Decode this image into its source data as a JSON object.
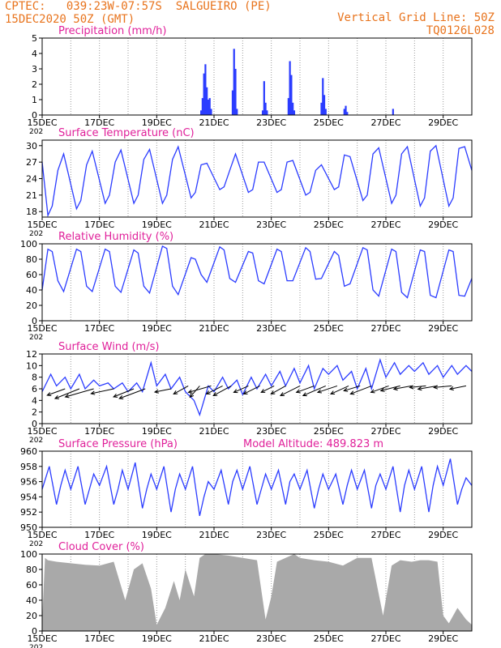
{
  "header": {
    "line1": "CPTEC:   039:23W-07:57S  SALGUEIRO (PE)",
    "line2": "15DEC2020 50Z (GMT)",
    "grid_note": "Vertical Grid Line: 50Z",
    "code": "TQ0126L028"
  },
  "x_ticks": [
    "15DEC",
    "17DEC",
    "19DEC",
    "21DEC",
    "23DEC",
    "25DEC",
    "27DEC",
    "29DEC"
  ],
  "x_tick_days": [
    15,
    17,
    19,
    21,
    23,
    25,
    27,
    29
  ],
  "year_fragment": "202",
  "colors": {
    "series": "#2b3cff",
    "title": "#e0209a",
    "header": "#e8731c",
    "cloud": "#a9a9a9",
    "vector": "#000000"
  },
  "chart_data": [
    {
      "type": "bar",
      "title": "Precipitation (mm/h)",
      "xlim": [
        15,
        30
      ],
      "ylim": [
        0,
        5
      ],
      "yticks": [
        "0",
        "1",
        "2",
        "3",
        "4",
        "5"
      ],
      "x": [
        20.55,
        20.6,
        20.65,
        20.7,
        20.75,
        20.8,
        20.85,
        20.9,
        21.65,
        21.7,
        21.75,
        21.8,
        22.7,
        22.75,
        22.8,
        22.85,
        23.6,
        23.65,
        23.7,
        23.75,
        23.8,
        24.75,
        24.8,
        24.85,
        24.9,
        25.55,
        25.6,
        25.65,
        27.25
      ],
      "values": [
        0.3,
        1.1,
        2.7,
        3.3,
        1.8,
        1.0,
        1.1,
        0.4,
        1.6,
        4.3,
        3.0,
        0.4,
        0.3,
        2.2,
        0.8,
        0.3,
        1.1,
        3.5,
        2.6,
        0.8,
        0.3,
        0.8,
        2.4,
        1.3,
        0.4,
        0.4,
        0.6,
        0.2,
        0.4
      ]
    },
    {
      "type": "line",
      "title": "Surface Temperature (nC)",
      "xlim": [
        15,
        30
      ],
      "ylim": [
        17,
        31
      ],
      "yticks": [
        "18",
        "21",
        "24",
        "27",
        "30"
      ],
      "series": [
        {
          "x": [
            15.0,
            15.2,
            15.35,
            15.55,
            15.75,
            16.2,
            16.35,
            16.55,
            16.75,
            17.2,
            17.35,
            17.55,
            17.75,
            18.2,
            18.35,
            18.55,
            18.75,
            19.2,
            19.35,
            19.55,
            19.75,
            20.2,
            20.35,
            20.55,
            20.75,
            21.2,
            21.35,
            21.55,
            21.75,
            22.2,
            22.35,
            22.55,
            22.75,
            23.2,
            23.35,
            23.55,
            23.75,
            24.2,
            24.35,
            24.55,
            24.75,
            25.2,
            25.35,
            25.55,
            25.75,
            26.2,
            26.35,
            26.55,
            26.75,
            27.2,
            27.35,
            27.55,
            27.75,
            28.2,
            28.35,
            28.55,
            28.75,
            29.2,
            29.35,
            29.55,
            29.75,
            30.0
          ],
          "y": [
            27.0,
            17.3,
            19.0,
            25.5,
            28.5,
            18.5,
            20.0,
            26.5,
            29.0,
            19.5,
            21.0,
            27.0,
            29.2,
            19.5,
            21.0,
            27.5,
            29.3,
            19.5,
            21.0,
            27.5,
            29.8,
            20.5,
            21.5,
            26.5,
            26.8,
            22.0,
            22.5,
            25.5,
            28.5,
            21.5,
            22.0,
            27.0,
            27.0,
            21.5,
            22.0,
            27.0,
            27.3,
            21.0,
            21.5,
            25.5,
            26.5,
            22.0,
            22.5,
            28.3,
            28.0,
            20.0,
            21.0,
            28.5,
            29.6,
            19.5,
            21.0,
            28.5,
            29.8,
            19.0,
            20.5,
            29.0,
            30.0,
            19.0,
            20.5,
            29.5,
            29.8,
            25.5
          ]
        }
      ]
    },
    {
      "type": "line",
      "title": "Relative Humidity (%)",
      "xlim": [
        15,
        30
      ],
      "ylim": [
        0,
        100
      ],
      "yticks": [
        "0",
        "20",
        "40",
        "60",
        "80",
        "100"
      ],
      "series": [
        {
          "x": [
            15.0,
            15.2,
            15.35,
            15.55,
            15.75,
            16.2,
            16.35,
            16.55,
            16.75,
            17.2,
            17.35,
            17.55,
            17.75,
            18.2,
            18.35,
            18.55,
            18.75,
            19.2,
            19.35,
            19.55,
            19.75,
            20.2,
            20.35,
            20.55,
            20.75,
            21.2,
            21.35,
            21.55,
            21.75,
            22.2,
            22.35,
            22.55,
            22.75,
            23.2,
            23.35,
            23.55,
            23.75,
            24.2,
            24.35,
            24.55,
            24.75,
            25.2,
            25.35,
            25.55,
            25.75,
            26.2,
            26.35,
            26.55,
            26.75,
            27.2,
            27.35,
            27.55,
            27.75,
            28.2,
            28.35,
            28.55,
            28.75,
            29.2,
            29.35,
            29.55,
            29.75,
            30.0
          ],
          "y": [
            40,
            93,
            90,
            52,
            38,
            93,
            90,
            45,
            38,
            93,
            90,
            45,
            37,
            92,
            88,
            45,
            36,
            97,
            94,
            45,
            34,
            82,
            80,
            60,
            50,
            96,
            92,
            55,
            50,
            90,
            88,
            52,
            48,
            93,
            90,
            52,
            52,
            95,
            90,
            54,
            55,
            90,
            85,
            45,
            48,
            95,
            92,
            40,
            32,
            93,
            90,
            37,
            30,
            92,
            90,
            33,
            30,
            92,
            90,
            33,
            32,
            55
          ]
        }
      ]
    },
    {
      "type": "line",
      "title": "Surface Wind (m/s)",
      "xlim": [
        15,
        30
      ],
      "ylim": [
        0,
        12
      ],
      "yticks": [
        "0",
        "2",
        "4",
        "6",
        "8",
        "10",
        "12"
      ],
      "series": [
        {
          "x": [
            15.0,
            15.3,
            15.5,
            15.8,
            16.0,
            16.3,
            16.5,
            16.8,
            17.0,
            17.3,
            17.5,
            17.8,
            18.0,
            18.3,
            18.5,
            18.8,
            19.0,
            19.3,
            19.5,
            19.8,
            20.0,
            20.3,
            20.5,
            20.8,
            21.0,
            21.3,
            21.5,
            21.8,
            22.0,
            22.3,
            22.5,
            22.8,
            23.0,
            23.3,
            23.5,
            23.8,
            24.0,
            24.3,
            24.5,
            24.8,
            25.0,
            25.3,
            25.5,
            25.8,
            26.0,
            26.3,
            26.5,
            26.8,
            27.0,
            27.3,
            27.5,
            27.8,
            28.0,
            28.3,
            28.5,
            28.8,
            29.0,
            29.3,
            29.5,
            29.8,
            30.0
          ],
          "y": [
            5.5,
            8.5,
            6.5,
            8.0,
            6.0,
            8.5,
            6.0,
            7.5,
            6.5,
            7.0,
            6.0,
            7.0,
            5.5,
            7.0,
            5.5,
            10.5,
            6.5,
            8.5,
            6.0,
            8.0,
            5.5,
            4.0,
            1.5,
            6.5,
            5.5,
            8.0,
            6.0,
            7.5,
            5.0,
            8.0,
            6.0,
            8.5,
            6.5,
            9.0,
            6.5,
            9.5,
            7.0,
            10.0,
            6.0,
            9.5,
            8.5,
            10.0,
            7.5,
            9.0,
            6.0,
            9.5,
            6.0,
            11.0,
            8.0,
            10.5,
            8.5,
            10.0,
            9.0,
            10.5,
            8.5,
            10.0,
            8.0,
            10.0,
            8.5,
            10.0,
            9.0
          ]
        }
      ],
      "vectors": {
        "x": [
          15.8,
          16.3,
          16.8,
          17.5,
          18.2,
          18.6,
          19.5,
          20.1,
          20.5,
          20.9,
          21.3,
          21.6,
          22.2,
          22.6,
          23.1,
          23.5,
          24.0,
          24.5,
          24.9,
          25.3,
          25.7,
          26.1,
          26.5,
          27.1,
          27.5,
          27.9,
          28.4,
          28.8,
          29.3,
          29.8
        ],
        "y": [
          6.0,
          6.0,
          6.0,
          6.0,
          6.0,
          6.0,
          6.0,
          6.5,
          6.5,
          6.5,
          6.5,
          6.5,
          6.5,
          6.5,
          6.5,
          6.5,
          6.5,
          6.5,
          6.5,
          6.5,
          6.5,
          6.5,
          6.5,
          6.5,
          6.5,
          6.5,
          6.5,
          6.5,
          6.5,
          6.5
        ],
        "u": [
          -22,
          -30,
          -35,
          -28,
          -25,
          -32,
          -20,
          -18,
          -12,
          -28,
          -20,
          -22,
          -18,
          -20,
          -16,
          -18,
          -24,
          -22,
          -28,
          -24,
          -22,
          -20,
          -26,
          -22,
          -24,
          -22,
          -20,
          -24,
          -22,
          -20
        ],
        "v": [
          -8,
          -12,
          -10,
          -6,
          -10,
          -12,
          -4,
          -10,
          -14,
          -8,
          -10,
          -12,
          -8,
          -10,
          -8,
          -10,
          -12,
          -8,
          -12,
          -8,
          -10,
          -6,
          -10,
          -8,
          -6,
          -4,
          -2,
          -4,
          -2,
          -4
        ]
      }
    },
    {
      "type": "line",
      "title": "Surface Pressure (hPa)",
      "annotation": "Model Altitude: 489.823 m",
      "xlim": [
        15,
        30
      ],
      "ylim": [
        950,
        960
      ],
      "yticks": [
        "950",
        "952",
        "954",
        "956",
        "958",
        "960"
      ],
      "series": [
        {
          "x": [
            15.0,
            15.25,
            15.5,
            15.65,
            15.8,
            16.0,
            16.25,
            16.5,
            16.65,
            16.8,
            17.0,
            17.25,
            17.5,
            17.65,
            17.8,
            18.0,
            18.25,
            18.5,
            18.65,
            18.8,
            19.0,
            19.25,
            19.5,
            19.65,
            19.8,
            20.0,
            20.25,
            20.5,
            20.65,
            20.8,
            21.0,
            21.25,
            21.5,
            21.65,
            21.8,
            22.0,
            22.25,
            22.5,
            22.65,
            22.8,
            23.0,
            23.25,
            23.5,
            23.65,
            23.8,
            24.0,
            24.25,
            24.5,
            24.65,
            24.8,
            25.0,
            25.25,
            25.5,
            25.65,
            25.8,
            26.0,
            26.25,
            26.5,
            26.65,
            26.8,
            27.0,
            27.25,
            27.5,
            27.65,
            27.8,
            28.0,
            28.25,
            28.5,
            28.65,
            28.8,
            29.0,
            29.25,
            29.5,
            29.65,
            29.8,
            30.0
          ],
          "y": [
            955.0,
            958.0,
            953.0,
            955.5,
            957.5,
            955.0,
            958.0,
            953.0,
            955.0,
            957.0,
            955.5,
            958.0,
            953.0,
            955.0,
            957.5,
            955.0,
            958.5,
            952.5,
            955.0,
            957.0,
            955.0,
            958.0,
            952.0,
            955.0,
            957.0,
            955.0,
            958.0,
            951.5,
            954.0,
            956.0,
            955.0,
            957.5,
            953.0,
            956.0,
            957.5,
            955.0,
            958.0,
            953.0,
            955.0,
            957.0,
            955.0,
            957.5,
            953.0,
            956.0,
            957.0,
            955.0,
            957.5,
            952.5,
            955.0,
            957.0,
            955.0,
            957.0,
            953.0,
            955.5,
            957.5,
            955.0,
            957.5,
            952.5,
            955.5,
            957.0,
            955.0,
            958.0,
            952.0,
            955.5,
            957.5,
            955.0,
            958.0,
            952.0,
            955.5,
            958.0,
            955.5,
            959.0,
            953.0,
            955.0,
            956.5,
            955.5
          ]
        }
      ]
    },
    {
      "type": "area",
      "title": "Cloud Cover (%)",
      "xlim": [
        15,
        30
      ],
      "ylim": [
        0,
        100
      ],
      "yticks": [
        "0",
        "20",
        "40",
        "60",
        "80",
        "100"
      ],
      "series": [
        {
          "x": [
            15.0,
            15.1,
            15.2,
            15.5,
            16.0,
            16.5,
            17.0,
            17.5,
            17.9,
            18.2,
            18.5,
            18.8,
            19.0,
            19.3,
            19.6,
            19.8,
            20.0,
            20.3,
            20.5,
            20.7,
            21.0,
            21.5,
            22.0,
            22.5,
            22.8,
            23.0,
            23.2,
            23.5,
            23.8,
            24.0,
            24.5,
            25.0,
            25.5,
            26.0,
            26.5,
            26.9,
            27.2,
            27.5,
            27.9,
            28.2,
            28.5,
            28.8,
            29.0,
            29.2,
            29.5,
            29.8,
            30.0
          ],
          "y": [
            12,
            95,
            92,
            90,
            88,
            86,
            85,
            90,
            40,
            80,
            88,
            55,
            8,
            30,
            65,
            40,
            80,
            45,
            95,
            100,
            100,
            98,
            95,
            92,
            15,
            45,
            90,
            95,
            100,
            95,
            92,
            90,
            85,
            95,
            95,
            20,
            85,
            92,
            90,
            92,
            92,
            90,
            20,
            10,
            30,
            15,
            8
          ]
        }
      ]
    }
  ]
}
